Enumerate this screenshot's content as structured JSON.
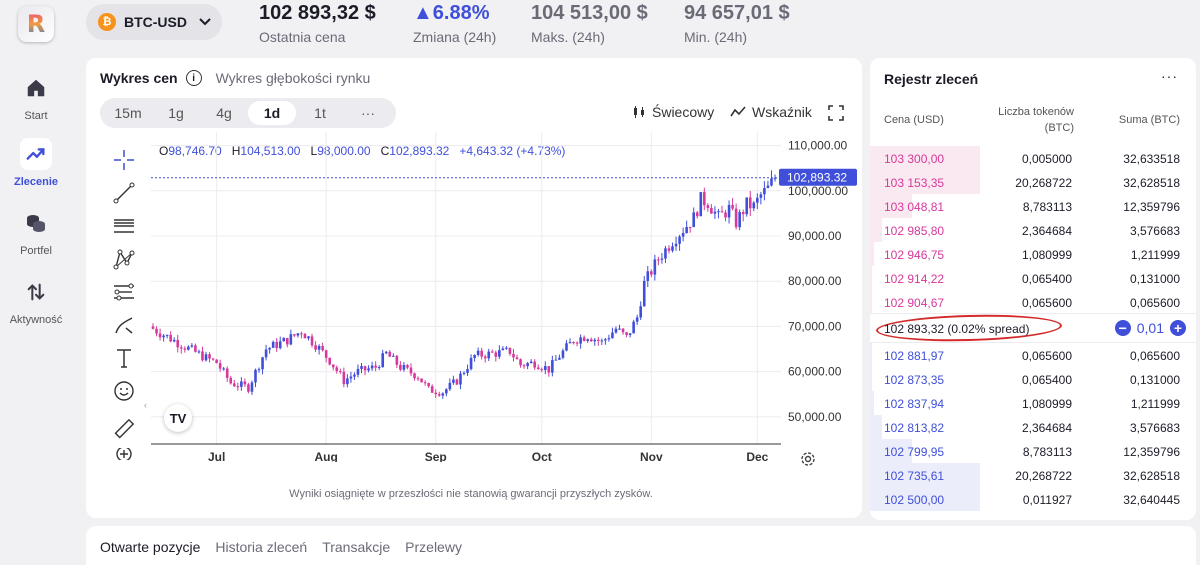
{
  "app": {
    "logo_letter": "R"
  },
  "sidebar": {
    "items": [
      {
        "label": "Start",
        "icon": "home-icon"
      },
      {
        "label": "Zlecenie",
        "icon": "trend-icon",
        "active": true
      },
      {
        "label": "Portfel",
        "icon": "coins-icon"
      },
      {
        "label": "Aktywność",
        "icon": "swap-arrows-icon"
      }
    ]
  },
  "header": {
    "pair": "BTC-USD",
    "pair_icon_glyph": "₿",
    "last_price": {
      "value": "102 893,32 $",
      "label": "Ostatnia cena"
    },
    "change": {
      "value": "▲6.88%",
      "label": "Zmiana (24h)"
    },
    "high": {
      "value": "104 513,00 $",
      "label": "Maks. (24h)"
    },
    "low": {
      "value": "94 657,01 $",
      "label": "Min. (24h)"
    }
  },
  "chart_panel": {
    "tab_active": "Wykres cen",
    "tab_other": "Wykres głębokości rynku",
    "timeframes": [
      "15m",
      "1g",
      "4g",
      "1d",
      "1t",
      "···"
    ],
    "active_timeframe": "1d",
    "style_label": "Świecowy",
    "indicator_label": "Wskaźnik",
    "ohlc": {
      "o_label": "O",
      "o": "98,746.70",
      "h_label": "H",
      "h": "104,513.00",
      "l_label": "L",
      "l": "98,000.00",
      "c_label": "C",
      "c": "102,893.32",
      "change": "+4,643.32 (+4.73%)"
    },
    "tv_logo": "TV",
    "disclaimer": "Wyniki osiągnięte w przeszłości nie stanowią gwarancji przyszłych zysków."
  },
  "chart_data": {
    "type": "candlestick",
    "x_tick_labels": [
      "Jul",
      "Aug",
      "Sep",
      "Oct",
      "Nov",
      "Dec"
    ],
    "x_tick_positions_day_index": [
      18,
      49,
      80,
      110,
      141,
      171
    ],
    "y_tick_labels": [
      "110,000.00",
      "100,000.00",
      "90,000.00",
      "80,000.00",
      "70,000.00",
      "60,000.00",
      "50,000.00"
    ],
    "y_ticks": [
      110000,
      100000,
      90000,
      80000,
      70000,
      60000,
      50000
    ],
    "ylim": [
      44000,
      113000
    ],
    "last_price_label": "102,893.32",
    "last_price": 102893.32,
    "close_path": [
      [
        0,
        69500
      ],
      [
        8,
        66000
      ],
      [
        15,
        63000
      ],
      [
        18,
        62000
      ],
      [
        22,
        57500
      ],
      [
        27,
        56500
      ],
      [
        32,
        65000
      ],
      [
        38,
        67000
      ],
      [
        42,
        69000
      ],
      [
        46,
        66000
      ],
      [
        50,
        62500
      ],
      [
        54,
        58000
      ],
      [
        58,
        60000
      ],
      [
        63,
        61000
      ],
      [
        66,
        64000
      ],
      [
        70,
        61000
      ],
      [
        75,
        59000
      ],
      [
        78,
        56000
      ],
      [
        82,
        55500
      ],
      [
        86,
        58000
      ],
      [
        91,
        63500
      ],
      [
        96,
        64000
      ],
      [
        101,
        64500
      ],
      [
        104,
        61500
      ],
      [
        108,
        62000
      ],
      [
        112,
        60500
      ],
      [
        115,
        63500
      ],
      [
        119,
        67000
      ],
      [
        123,
        68000
      ],
      [
        127,
        66500
      ],
      [
        131,
        69500
      ],
      [
        134,
        67500
      ],
      [
        137,
        72000
      ],
      [
        139,
        79500
      ],
      [
        143,
        85000
      ],
      [
        147,
        89000
      ],
      [
        150,
        91500
      ],
      [
        153,
        94000
      ],
      [
        155,
        98000
      ],
      [
        157,
        97500
      ],
      [
        160,
        94000
      ],
      [
        163,
        96000
      ],
      [
        165,
        93000
      ],
      [
        168,
        97000
      ],
      [
        170,
        96500
      ],
      [
        172,
        99000
      ],
      [
        174,
        100500
      ],
      [
        176,
        102893
      ]
    ]
  },
  "order_book": {
    "title": "Rejestr zleceń",
    "more": "···",
    "col_price": "Cena (USD)",
    "col_qty": "Liczba tokenów (BTC)",
    "col_sum": "Suma (BTC)",
    "asks": [
      {
        "price": "103 300,00",
        "qty": "0,005000",
        "sum": "32,633518",
        "depth": 1.0
      },
      {
        "price": "103 153,35",
        "qty": "20,268722",
        "sum": "32,628518",
        "depth": 1.0
      },
      {
        "price": "103 048,81",
        "qty": "8,783113",
        "sum": "12,359796",
        "depth": 0.38
      },
      {
        "price": "102 985,80",
        "qty": "2,364684",
        "sum": "3,576683",
        "depth": 0.11
      },
      {
        "price": "102 946,75",
        "qty": "1,080999",
        "sum": "1,211999",
        "depth": 0.04
      },
      {
        "price": "102 914,22",
        "qty": "0,065400",
        "sum": "0,131000",
        "depth": 0.01
      },
      {
        "price": "102 904,67",
        "qty": "0,065600",
        "sum": "0,065600",
        "depth": 0.005
      }
    ],
    "spread_text": "102 893,32 (0.02% spread)",
    "spread_step": "0,01",
    "bids": [
      {
        "price": "102 881,97",
        "qty": "0,065600",
        "sum": "0,065600",
        "depth": 0.005
      },
      {
        "price": "102 873,35",
        "qty": "0,065400",
        "sum": "0,131000",
        "depth": 0.01
      },
      {
        "price": "102 837,94",
        "qty": "1,080999",
        "sum": "1,211999",
        "depth": 0.04
      },
      {
        "price": "102 813,82",
        "qty": "2,364684",
        "sum": "3,576683",
        "depth": 0.11
      },
      {
        "price": "102 799,95",
        "qty": "8,783113",
        "sum": "12,359796",
        "depth": 0.38
      },
      {
        "price": "102 735,61",
        "qty": "20,268722",
        "sum": "32,628518",
        "depth": 1.0
      },
      {
        "price": "102 500,00",
        "qty": "0,011927",
        "sum": "32,640445",
        "depth": 1.0
      }
    ]
  },
  "bottom_tabs": [
    "Otwarte pozycje",
    "Historia zleceń",
    "Transakcje",
    "Przelewy"
  ],
  "colors": {
    "accent": "#3f4fd9",
    "ask": "#d6399a",
    "up_candle": "#3f4fd9",
    "down_candle": "#d6399a",
    "annotation": "#d42a2a"
  }
}
